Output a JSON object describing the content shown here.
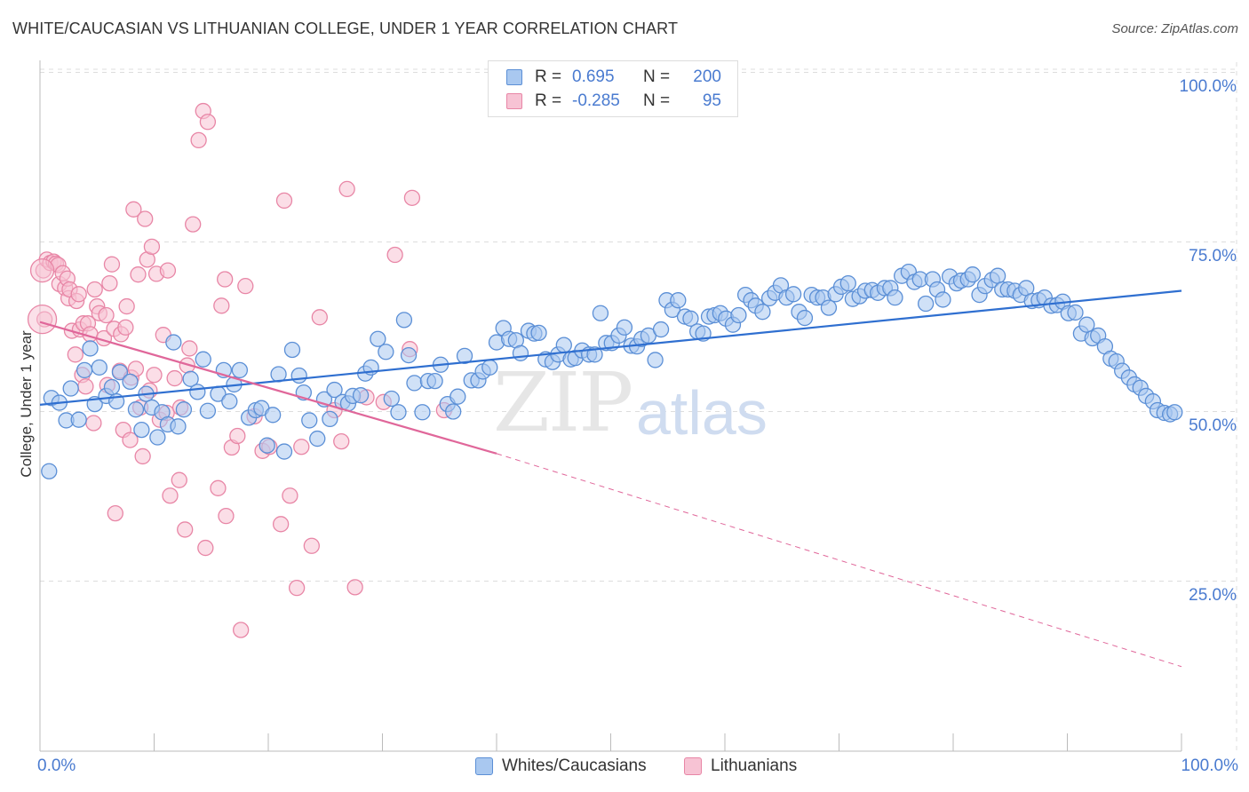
{
  "title": "WHITE/CAUCASIAN VS LITHUANIAN COLLEGE, UNDER 1 YEAR CORRELATION CHART",
  "source": "Source: ZipAtlas.com",
  "watermark": {
    "zip": "ZIP",
    "atlas": "atlas"
  },
  "colors": {
    "blue_fill": "#a9c8f0",
    "blue_stroke": "#5b8fd6",
    "blue_line": "#2f6fd0",
    "pink_fill": "#f7c3d4",
    "pink_stroke": "#e886a6",
    "pink_line": "#e0679a",
    "grid": "#dddddd",
    "tick_text": "#4a7bd0"
  },
  "legend": {
    "rows": [
      {
        "r_label": "R =",
        "r_value": "0.695",
        "n_label": "N =",
        "n_value": "200"
      },
      {
        "r_label": "R =",
        "r_value": "-0.285",
        "n_label": "N =",
        "n_value": "95"
      }
    ]
  },
  "bottom_legend": [
    "Whites/Caucasians",
    "Lithuanians"
  ],
  "chart_data": {
    "type": "scatter",
    "title": "WHITE/CAUCASIAN VS LITHUANIAN COLLEGE, UNDER 1 YEAR CORRELATION CHART",
    "xlabel": "",
    "ylabel": "College, Under 1 year",
    "xlim": [
      0,
      100
    ],
    "ylim": [
      0,
      105
    ],
    "x_tick_labels": [
      "0.0%",
      "100.0%"
    ],
    "y_tick_labels": [
      "25.0%",
      "50.0%",
      "75.0%",
      "100.0%"
    ],
    "y_ticks": [
      25,
      50,
      75,
      100
    ],
    "grid": true,
    "legend_position": "top-center",
    "series": [
      {
        "name": "Whites/Caucasians",
        "r": 0.695,
        "n": 200,
        "trend": {
          "x": [
            0,
            100
          ],
          "y": [
            51.0,
            67.8
          ]
        },
        "points": [
          [
            0.8,
            41.2
          ],
          [
            1.0,
            52
          ],
          [
            1.7,
            51.3
          ],
          [
            2.3,
            48.7
          ],
          [
            2.7,
            53.4
          ],
          [
            3.4,
            48.8
          ],
          [
            3.9,
            56.1
          ],
          [
            4.4,
            59.3
          ],
          [
            4.8,
            51.1
          ],
          [
            5.2,
            56.5
          ],
          [
            5.8,
            52.3
          ],
          [
            6.3,
            53.6
          ],
          [
            6.7,
            51.5
          ],
          [
            7.0,
            55.8
          ],
          [
            7.9,
            54.4
          ],
          [
            8.4,
            50.3
          ],
          [
            8.9,
            47.3
          ],
          [
            9.3,
            52.6
          ],
          [
            9.8,
            50.6
          ],
          [
            10.3,
            46.2
          ],
          [
            10.7,
            49.9
          ],
          [
            11.2,
            48.1
          ],
          [
            11.7,
            60.2
          ],
          [
            12.1,
            47.8
          ],
          [
            12.6,
            50.3
          ],
          [
            13.2,
            54.8
          ],
          [
            13.8,
            52.9
          ],
          [
            14.3,
            57.7
          ],
          [
            14.7,
            50.1
          ],
          [
            15.6,
            52.6
          ],
          [
            16.1,
            56.1
          ],
          [
            16.6,
            51.5
          ],
          [
            17.0,
            54.0
          ],
          [
            17.5,
            56.1
          ],
          [
            18.3,
            49.1
          ],
          [
            18.9,
            50.2
          ],
          [
            19.4,
            50.5
          ],
          [
            19.9,
            45.0
          ],
          [
            20.4,
            49.5
          ],
          [
            20.9,
            55.5
          ],
          [
            21.4,
            44.1
          ],
          [
            22.1,
            59.1
          ],
          [
            22.7,
            55.3
          ],
          [
            23.1,
            52.8
          ],
          [
            23.6,
            48.7
          ],
          [
            24.3,
            46.0
          ],
          [
            24.9,
            51.8
          ],
          [
            25.4,
            48.9
          ],
          [
            25.8,
            53.2
          ],
          [
            26.5,
            51.4
          ],
          [
            27.0,
            51.2
          ],
          [
            27.4,
            52.3
          ],
          [
            28.1,
            52.4
          ],
          [
            28.5,
            55.6
          ],
          [
            29.0,
            56.5
          ],
          [
            29.6,
            60.7
          ],
          [
            30.3,
            58.8
          ],
          [
            30.8,
            51.9
          ],
          [
            31.4,
            49.9
          ],
          [
            31.9,
            63.5
          ],
          [
            32.3,
            58.3
          ],
          [
            32.8,
            54.2
          ],
          [
            33.5,
            49.9
          ],
          [
            34.0,
            54.5
          ],
          [
            34.6,
            54.5
          ],
          [
            35.1,
            56.9
          ],
          [
            35.7,
            51.1
          ],
          [
            36.2,
            50.0
          ],
          [
            36.6,
            52.2
          ],
          [
            37.2,
            58.2
          ],
          [
            37.8,
            54.6
          ],
          [
            38.4,
            54.6
          ],
          [
            38.8,
            55.9
          ],
          [
            39.4,
            56.5
          ],
          [
            40.0,
            60.2
          ],
          [
            40.6,
            62.3
          ],
          [
            41.1,
            60.7
          ],
          [
            41.7,
            60.5
          ],
          [
            42.1,
            58.6
          ],
          [
            42.8,
            61.9
          ],
          [
            43.3,
            61.5
          ],
          [
            43.7,
            61.6
          ],
          [
            44.3,
            57.7
          ],
          [
            44.9,
            57.3
          ],
          [
            45.4,
            58.4
          ],
          [
            45.9,
            59.8
          ],
          [
            46.5,
            57.7
          ],
          [
            46.9,
            57.9
          ],
          [
            47.5,
            59.0
          ],
          [
            48.1,
            58.4
          ],
          [
            48.6,
            58.4
          ],
          [
            49.1,
            64.5
          ],
          [
            49.6,
            60.1
          ],
          [
            50.1,
            60.1
          ],
          [
            50.7,
            61.2
          ],
          [
            51.2,
            62.4
          ],
          [
            51.8,
            59.7
          ],
          [
            52.3,
            59.6
          ],
          [
            52.7,
            60.7
          ],
          [
            53.3,
            61.2
          ],
          [
            53.9,
            57.6
          ],
          [
            54.4,
            62.1
          ],
          [
            54.9,
            66.4
          ],
          [
            55.4,
            65.0
          ],
          [
            55.9,
            66.4
          ],
          [
            56.5,
            64.0
          ],
          [
            57.0,
            63.7
          ],
          [
            57.6,
            61.8
          ],
          [
            58.1,
            61.5
          ],
          [
            58.6,
            64.0
          ],
          [
            59.1,
            64.2
          ],
          [
            59.6,
            64.5
          ],
          [
            60.1,
            63.7
          ],
          [
            60.7,
            62.8
          ],
          [
            61.2,
            64.2
          ],
          [
            61.8,
            67.2
          ],
          [
            62.3,
            66.4
          ],
          [
            62.7,
            65.6
          ],
          [
            63.3,
            64.7
          ],
          [
            63.9,
            66.7
          ],
          [
            64.4,
            67.5
          ],
          [
            64.9,
            68.6
          ],
          [
            65.4,
            66.8
          ],
          [
            66.0,
            67.3
          ],
          [
            66.5,
            64.7
          ],
          [
            67.0,
            63.8
          ],
          [
            67.6,
            67.2
          ],
          [
            68.1,
            66.8
          ],
          [
            68.6,
            66.8
          ],
          [
            69.1,
            65.3
          ],
          [
            69.7,
            67.3
          ],
          [
            70.2,
            68.4
          ],
          [
            70.8,
            68.9
          ],
          [
            71.2,
            66.6
          ],
          [
            71.8,
            67.0
          ],
          [
            72.3,
            67.8
          ],
          [
            72.9,
            67.9
          ],
          [
            73.4,
            67.5
          ],
          [
            74.0,
            68.2
          ],
          [
            74.5,
            68.2
          ],
          [
            74.9,
            66.8
          ],
          [
            75.5,
            70.0
          ],
          [
            76.1,
            70.6
          ],
          [
            76.6,
            69.1
          ],
          [
            77.1,
            69.5
          ],
          [
            77.6,
            65.9
          ],
          [
            78.2,
            69.5
          ],
          [
            78.6,
            68.0
          ],
          [
            79.1,
            66.5
          ],
          [
            79.7,
            69.9
          ],
          [
            80.3,
            68.9
          ],
          [
            80.7,
            69.3
          ],
          [
            81.3,
            69.5
          ],
          [
            81.7,
            70.2
          ],
          [
            82.3,
            67.2
          ],
          [
            82.8,
            68.5
          ],
          [
            83.4,
            69.4
          ],
          [
            83.9,
            70.0
          ],
          [
            84.3,
            68.0
          ],
          [
            84.8,
            68.0
          ],
          [
            85.4,
            67.8
          ],
          [
            85.9,
            67.2
          ],
          [
            86.4,
            68.2
          ],
          [
            86.9,
            66.3
          ],
          [
            87.5,
            66.4
          ],
          [
            88.0,
            66.8
          ],
          [
            88.6,
            65.6
          ],
          [
            89.1,
            65.7
          ],
          [
            89.6,
            66.2
          ],
          [
            90.1,
            64.5
          ],
          [
            90.7,
            64.6
          ],
          [
            91.2,
            61.5
          ],
          [
            91.7,
            62.8
          ],
          [
            92.2,
            60.8
          ],
          [
            92.7,
            61.2
          ],
          [
            93.3,
            59.6
          ],
          [
            93.8,
            57.8
          ],
          [
            94.3,
            57.4
          ],
          [
            94.8,
            56.0
          ],
          [
            95.4,
            55.0
          ],
          [
            95.9,
            54.0
          ],
          [
            96.4,
            53.5
          ],
          [
            96.9,
            52.3
          ],
          [
            97.5,
            51.5
          ],
          [
            97.9,
            50.2
          ],
          [
            98.5,
            49.8
          ],
          [
            99.0,
            49.6
          ],
          [
            99.4,
            49.9
          ]
        ]
      },
      {
        "name": "Lithuanians",
        "r": -0.285,
        "n": 95,
        "trend": {
          "x": [
            0,
            40
          ],
          "y": [
            63.2,
            43.8
          ]
        },
        "trend_dashed": {
          "x": [
            40,
            100
          ],
          "y": [
            43.8,
            12.4
          ]
        },
        "points": [
          [
            0.3,
            70.8
          ],
          [
            0.4,
            63.6
          ],
          [
            0.6,
            72.4
          ],
          [
            0.9,
            71.9
          ],
          [
            1.2,
            72.1
          ],
          [
            1.4,
            71.8
          ],
          [
            1.6,
            71.6
          ],
          [
            1.7,
            68.8
          ],
          [
            2.0,
            70.4
          ],
          [
            2.2,
            68.2
          ],
          [
            2.4,
            69.6
          ],
          [
            2.5,
            66.7
          ],
          [
            2.6,
            68.0
          ],
          [
            2.8,
            61.9
          ],
          [
            3.1,
            58.4
          ],
          [
            3.2,
            66.3
          ],
          [
            3.4,
            67.3
          ],
          [
            3.5,
            62.1
          ],
          [
            3.7,
            55.4
          ],
          [
            3.8,
            63.0
          ],
          [
            4.0,
            53.7
          ],
          [
            4.2,
            63.0
          ],
          [
            4.4,
            61.4
          ],
          [
            4.7,
            48.3
          ],
          [
            4.8,
            68.0
          ],
          [
            5.0,
            65.5
          ],
          [
            5.2,
            64.5
          ],
          [
            5.6,
            60.8
          ],
          [
            5.8,
            64.2
          ],
          [
            5.9,
            53.9
          ],
          [
            6.1,
            68.9
          ],
          [
            6.3,
            71.7
          ],
          [
            6.5,
            62.2
          ],
          [
            6.6,
            35.0
          ],
          [
            7.0,
            56.0
          ],
          [
            7.1,
            61.4
          ],
          [
            7.3,
            47.3
          ],
          [
            7.5,
            62.4
          ],
          [
            7.6,
            65.5
          ],
          [
            7.9,
            45.8
          ],
          [
            8.0,
            55.0
          ],
          [
            8.2,
            79.8
          ],
          [
            8.4,
            56.3
          ],
          [
            8.6,
            70.2
          ],
          [
            8.8,
            50.6
          ],
          [
            9.0,
            43.4
          ],
          [
            9.2,
            78.4
          ],
          [
            9.4,
            72.4
          ],
          [
            9.6,
            53.1
          ],
          [
            9.8,
            74.3
          ],
          [
            10.0,
            55.4
          ],
          [
            10.2,
            70.3
          ],
          [
            10.5,
            48.8
          ],
          [
            10.8,
            61.3
          ],
          [
            11.1,
            49.8
          ],
          [
            11.2,
            70.8
          ],
          [
            11.4,
            37.6
          ],
          [
            11.8,
            54.9
          ],
          [
            12.2,
            39.9
          ],
          [
            12.3,
            50.6
          ],
          [
            12.7,
            32.6
          ],
          [
            12.9,
            56.8
          ],
          [
            13.1,
            59.3
          ],
          [
            13.4,
            77.6
          ],
          [
            13.9,
            90.0
          ],
          [
            14.3,
            94.3
          ],
          [
            14.5,
            29.9
          ],
          [
            14.7,
            92.7
          ],
          [
            15.6,
            38.7
          ],
          [
            15.9,
            65.6
          ],
          [
            16.2,
            69.5
          ],
          [
            16.3,
            34.6
          ],
          [
            16.8,
            44.7
          ],
          [
            17.3,
            46.4
          ],
          [
            17.6,
            17.8
          ],
          [
            18.0,
            68.5
          ],
          [
            18.8,
            49.3
          ],
          [
            19.5,
            44.2
          ],
          [
            20.1,
            44.8
          ],
          [
            21.1,
            33.4
          ],
          [
            21.4,
            81.1
          ],
          [
            21.9,
            37.6
          ],
          [
            22.5,
            24.0
          ],
          [
            22.9,
            44.8
          ],
          [
            23.8,
            30.2
          ],
          [
            24.5,
            63.9
          ],
          [
            25.8,
            50.2
          ],
          [
            26.4,
            45.6
          ],
          [
            26.9,
            82.8
          ],
          [
            27.6,
            24.1
          ],
          [
            28.6,
            52.1
          ],
          [
            30.1,
            51.4
          ],
          [
            31.1,
            73.1
          ],
          [
            32.4,
            59.2
          ],
          [
            32.6,
            81.5
          ],
          [
            35.4,
            50.2
          ]
        ]
      }
    ]
  }
}
